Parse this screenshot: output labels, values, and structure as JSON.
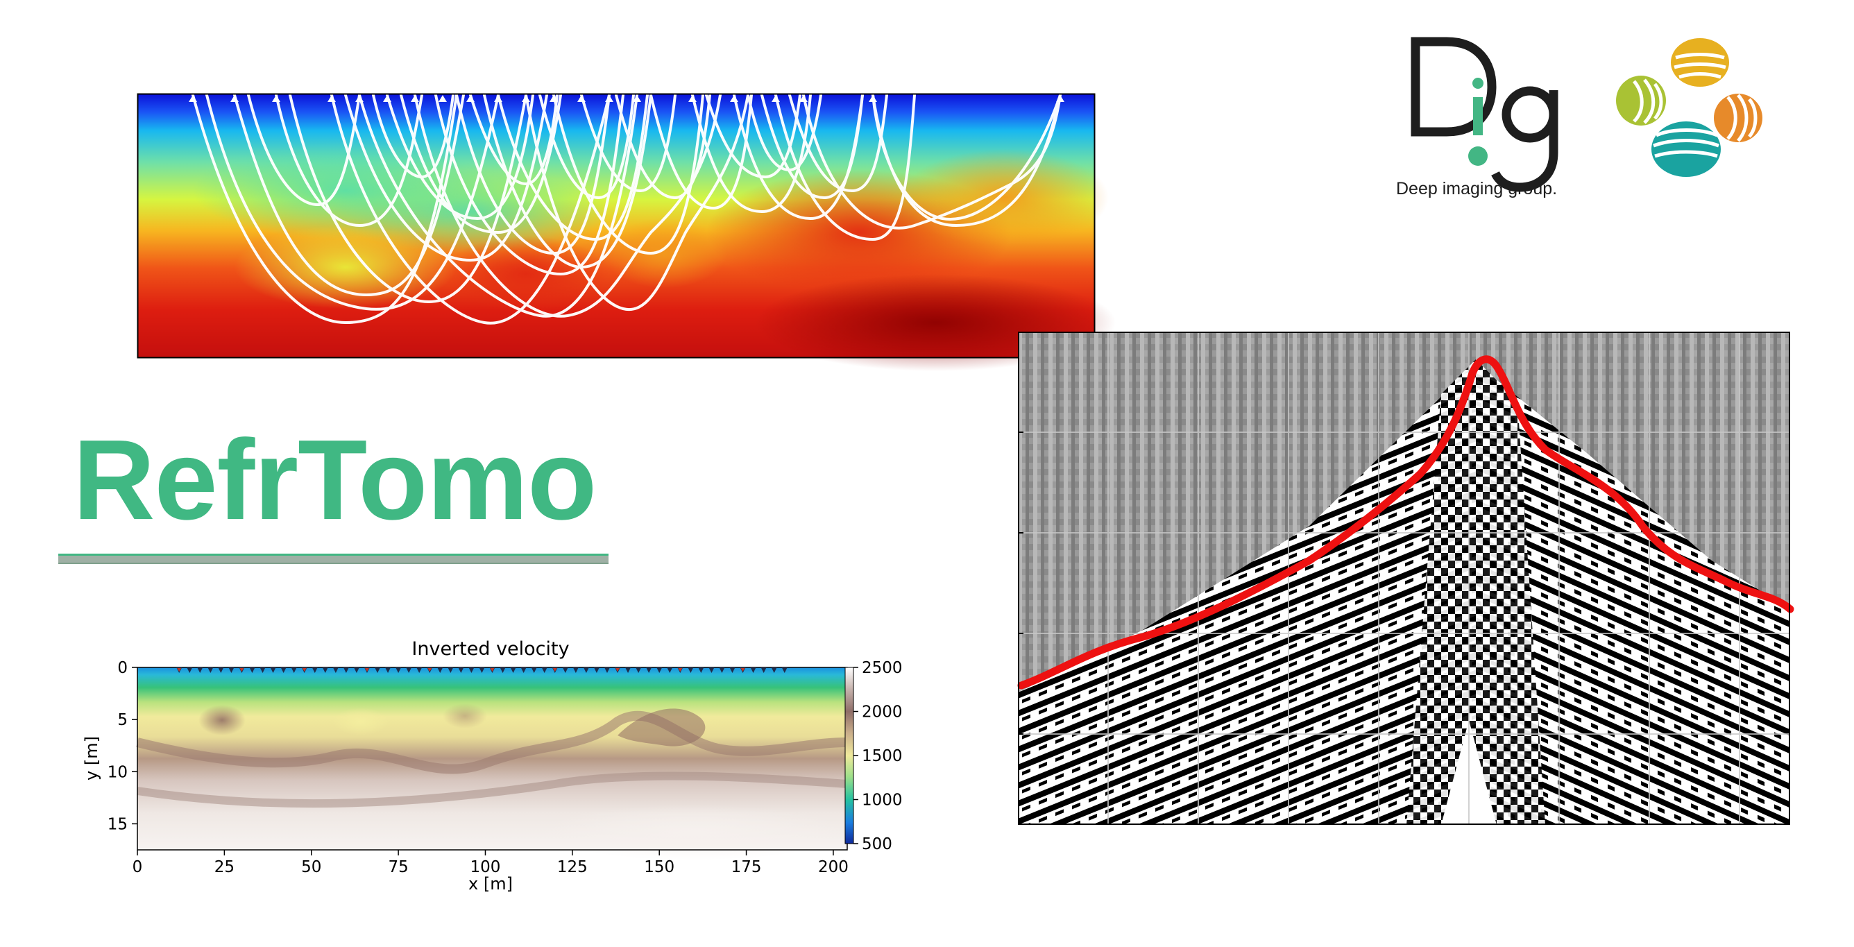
{
  "title": "RefrTomo",
  "logos": {
    "dig_letters": "Dig",
    "dig_tagline": "Deep imaging group."
  },
  "colors": {
    "title_green": "#40b883",
    "pick_red": "#ee1111"
  },
  "inverted_plot": {
    "title": "Inverted velocity",
    "xlabel": "x [m]",
    "ylabel": "y [m]",
    "x_ticks": [
      "0",
      "25",
      "50",
      "75",
      "100",
      "125",
      "150",
      "175",
      "200"
    ],
    "y_ticks": [
      "0",
      "5",
      "10",
      "15"
    ],
    "colorbar_ticks": [
      "2500",
      "2000",
      "1500",
      "1000",
      "500"
    ]
  },
  "chart_data": {
    "type": "heatmap",
    "title": "Inverted velocity",
    "xlabel": "x [m]",
    "ylabel": "y [m]",
    "xlim": [
      0,
      204
    ],
    "ylim": [
      17.5,
      0
    ],
    "x_ticks": [
      0,
      25,
      50,
      75,
      100,
      125,
      150,
      175,
      200
    ],
    "y_ticks": [
      0,
      5,
      10,
      15
    ],
    "colorbar": {
      "min": 500,
      "max": 2500,
      "ticks": [
        500,
        1000,
        1500,
        2000,
        2500
      ]
    }
  }
}
